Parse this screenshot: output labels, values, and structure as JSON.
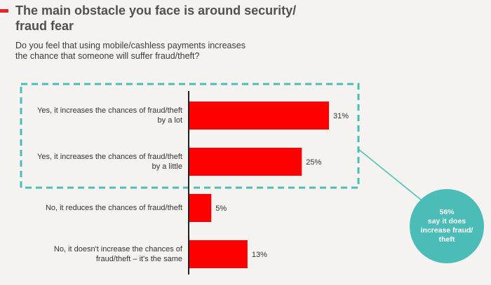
{
  "header": {
    "title": "The main obstacle you face is around security/ fraud fear",
    "subtitle": "Do you feel that using mobile/cashless payments increases the chance that someone will suffer fraud/theft?"
  },
  "colors": {
    "accent": "#e8232a",
    "bar": "#fe0000",
    "teal": "#4bbcb8",
    "text": "#333333"
  },
  "callout": {
    "value": "56%",
    "text": "say it does increase fraud/ theft"
  },
  "chart_data": {
    "type": "bar",
    "orientation": "horizontal",
    "categories": [
      "Yes, it increases the chances of fraud/theft by a lot",
      "Yes, it increases the chances of fraud/theft by a little",
      "No, it reduces the chances of fraud/theft",
      "No, it doesn't increase the chances of fraud/theft – it's the same"
    ],
    "values": [
      31,
      25,
      5,
      13
    ],
    "value_labels": [
      "31%",
      "25%",
      "5%",
      "13%"
    ],
    "unit": "%",
    "xlim": [
      0,
      35
    ],
    "grid": false,
    "legend": "none",
    "highlighted_categories": [
      0,
      1
    ]
  }
}
